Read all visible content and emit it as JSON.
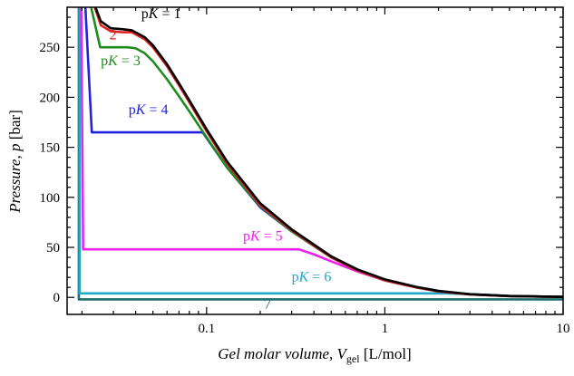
{
  "chart_data": {
    "type": "line",
    "xlabel": {
      "main": "Gel molar volume, ",
      "var": "V",
      "sub": "gel",
      "unit": " [L/mol]"
    },
    "ylabel": {
      "main": "Pressure, ",
      "var": "p",
      "unit": " [bar]"
    },
    "x_scale": "log",
    "xlim": [
      0.0165,
      10
    ],
    "ylim": [
      -17,
      290
    ],
    "x_ticks": [
      {
        "value": 0.1,
        "label": "0.1"
      },
      {
        "value": 1,
        "label": "1"
      },
      {
        "value": 10,
        "label": "10"
      }
    ],
    "y_ticks": [
      {
        "value": 0,
        "label": "0"
      },
      {
        "value": 50,
        "label": "50"
      },
      {
        "value": 100,
        "label": "100"
      },
      {
        "value": 150,
        "label": "150"
      },
      {
        "value": 200,
        "label": "200"
      },
      {
        "value": 250,
        "label": "250"
      }
    ],
    "grid": false,
    "legend": "inline labels",
    "series": [
      {
        "name": "7",
        "color": "#1f6d6d",
        "label": {
          "prefix": "",
          "italic": "",
          "suffix": "7",
          "x": 0.21,
          "y": -11
        },
        "points": [
          [
            0.0192,
            290
          ],
          [
            0.0192,
            -2
          ],
          [
            10,
            -2
          ]
        ]
      },
      {
        "name": "pK = 6",
        "color": "#20a8c8",
        "label": {
          "prefix": "p",
          "italic": "K",
          "suffix": " = 6",
          "x": 0.3,
          "y": 16
        },
        "points": [
          [
            0.0194,
            290
          ],
          [
            0.0194,
            4
          ],
          [
            2.2,
            4
          ],
          [
            3,
            3.2
          ],
          [
            5,
            1.5
          ],
          [
            10,
            0.5
          ]
        ]
      },
      {
        "name": "pK = 5",
        "color": "#ee22ee",
        "label": {
          "prefix": "p",
          "italic": "K",
          "suffix": " = 5",
          "x": 0.16,
          "y": 57
        },
        "points": [
          [
            0.0198,
            290
          ],
          [
            0.0203,
            48
          ],
          [
            0.33,
            48
          ],
          [
            0.4,
            43
          ],
          [
            0.5,
            36
          ],
          [
            0.7,
            26
          ],
          [
            1,
            17
          ],
          [
            1.5,
            10
          ],
          [
            2,
            6
          ],
          [
            3,
            3
          ],
          [
            5,
            1.3
          ],
          [
            10,
            0.5
          ]
        ]
      },
      {
        "name": "pK = 4",
        "color": "#2222dd",
        "label": {
          "prefix": "p",
          "italic": "K",
          "suffix": " = 4",
          "x": 0.0365,
          "y": 183
        },
        "points": [
          [
            0.0209,
            290
          ],
          [
            0.0227,
            165
          ],
          [
            0.095,
            165
          ],
          [
            0.13,
            130
          ],
          [
            0.2,
            90
          ],
          [
            0.3,
            66
          ],
          [
            0.5,
            40
          ],
          [
            0.7,
            27
          ],
          [
            1,
            17
          ],
          [
            1.5,
            10
          ],
          [
            2,
            6
          ],
          [
            3,
            3
          ],
          [
            5,
            1.3
          ],
          [
            10,
            0.5
          ]
        ]
      },
      {
        "name": "pK = 3",
        "color": "#1e8c1e",
        "label": {
          "prefix": "p",
          "italic": "K",
          "suffix": " = 3",
          "x": 0.0255,
          "y": 232
        },
        "points": [
          [
            0.0225,
            290
          ],
          [
            0.0253,
            250
          ],
          [
            0.036,
            250
          ],
          [
            0.04,
            249
          ],
          [
            0.045,
            244
          ],
          [
            0.05,
            236
          ],
          [
            0.06,
            218
          ],
          [
            0.07,
            201
          ],
          [
            0.08,
            186
          ],
          [
            0.1,
            160
          ],
          [
            0.13,
            130
          ],
          [
            0.2,
            91
          ],
          [
            0.3,
            66
          ],
          [
            0.5,
            40
          ],
          [
            0.7,
            27
          ],
          [
            1,
            17
          ],
          [
            1.5,
            10
          ],
          [
            2,
            6
          ],
          [
            3,
            3
          ],
          [
            5,
            1.3
          ],
          [
            10,
            0.5
          ]
        ]
      },
      {
        "name": "2",
        "color": "#dd2222",
        "label": {
          "prefix": "",
          "italic": "",
          "suffix": "2",
          "x": 0.0285,
          "y": 258
        },
        "points": [
          [
            0.0236,
            290
          ],
          [
            0.0255,
            272
          ],
          [
            0.029,
            266
          ],
          [
            0.034,
            265
          ],
          [
            0.038,
            265
          ],
          [
            0.045,
            258
          ],
          [
            0.05,
            250
          ],
          [
            0.06,
            231
          ],
          [
            0.07,
            212
          ],
          [
            0.08,
            195
          ],
          [
            0.1,
            166
          ],
          [
            0.13,
            134
          ],
          [
            0.2,
            92
          ],
          [
            0.3,
            67
          ],
          [
            0.5,
            40
          ],
          [
            0.7,
            27
          ],
          [
            1,
            17
          ],
          [
            1.5,
            10
          ],
          [
            2,
            6
          ],
          [
            3,
            3
          ],
          [
            5,
            1.3
          ],
          [
            10,
            0.5
          ]
        ]
      },
      {
        "name": "pK = 1",
        "color": "#000000",
        "label": {
          "prefix": "p",
          "italic": "K",
          "suffix": " = 1",
          "x": 0.043,
          "y": 279
        },
        "points": [
          [
            0.0238,
            290
          ],
          [
            0.0255,
            276
          ],
          [
            0.029,
            269
          ],
          [
            0.034,
            268
          ],
          [
            0.038,
            267
          ],
          [
            0.045,
            260
          ],
          [
            0.05,
            252
          ],
          [
            0.06,
            233
          ],
          [
            0.07,
            214
          ],
          [
            0.08,
            197
          ],
          [
            0.1,
            168
          ],
          [
            0.13,
            136
          ],
          [
            0.2,
            94
          ],
          [
            0.3,
            68
          ],
          [
            0.5,
            41
          ],
          [
            0.7,
            28
          ],
          [
            1,
            18
          ],
          [
            1.5,
            10.5
          ],
          [
            2,
            6.5
          ],
          [
            3,
            3.2
          ],
          [
            5,
            1.4
          ],
          [
            10,
            0.5
          ]
        ]
      }
    ]
  }
}
